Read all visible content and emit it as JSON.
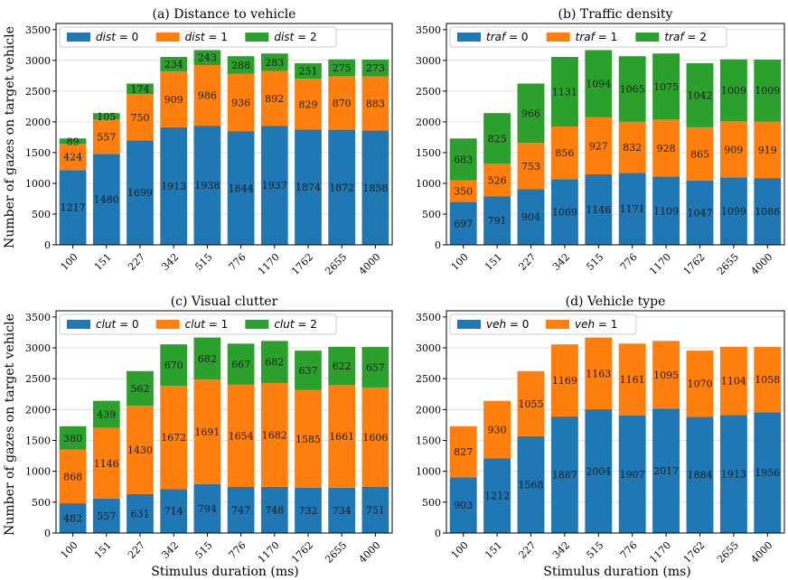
{
  "figure": {
    "ylabel": "Number of gazes on target vehicle",
    "xlabel": "Stimulus duration (ms)"
  },
  "chart_data": [
    {
      "type": "bar",
      "stacked": true,
      "title": "(a) Distance to vehicle",
      "xlabel": "",
      "ylabel": "Number of gazes on target vehicle",
      "categories": [
        "100",
        "151",
        "227",
        "342",
        "515",
        "776",
        "1170",
        "1762",
        "2655",
        "4000"
      ],
      "ylim": [
        0,
        3600
      ],
      "yticks": [
        0,
        500,
        1000,
        1500,
        2000,
        2500,
        3000,
        3500
      ],
      "grid": true,
      "legend": "top",
      "series": [
        {
          "name": "dist = 0",
          "var": "dist",
          "val": "0",
          "color": "#1f77b4",
          "values": [
            1217,
            1480,
            1699,
            1913,
            1938,
            1844,
            1937,
            1874,
            1872,
            1858
          ]
        },
        {
          "name": "dist = 1",
          "var": "dist",
          "val": "1",
          "color": "#ff7f0e",
          "values": [
            424,
            557,
            750,
            909,
            986,
            936,
            892,
            829,
            870,
            883
          ]
        },
        {
          "name": "dist = 2",
          "var": "dist",
          "val": "2",
          "color": "#2ca02c",
          "values": [
            89,
            105,
            174,
            234,
            243,
            288,
            283,
            251,
            275,
            273
          ]
        }
      ]
    },
    {
      "type": "bar",
      "stacked": true,
      "title": "(b) Traffic density",
      "xlabel": "",
      "ylabel": "",
      "categories": [
        "100",
        "151",
        "227",
        "342",
        "515",
        "776",
        "1170",
        "1762",
        "2655",
        "4000"
      ],
      "ylim": [
        0,
        3600
      ],
      "yticks": [
        0,
        500,
        1000,
        1500,
        2000,
        2500,
        3000,
        3500
      ],
      "grid": true,
      "legend": "top",
      "series": [
        {
          "name": "traf = 0",
          "var": "traf",
          "val": "0",
          "color": "#1f77b4",
          "values": [
            697,
            791,
            904,
            1069,
            1146,
            1171,
            1109,
            1047,
            1099,
            1086
          ]
        },
        {
          "name": "traf = 1",
          "var": "traf",
          "val": "1",
          "color": "#ff7f0e",
          "values": [
            350,
            526,
            753,
            856,
            927,
            832,
            928,
            865,
            909,
            919
          ]
        },
        {
          "name": "traf = 2",
          "var": "traf",
          "val": "2",
          "color": "#2ca02c",
          "values": [
            683,
            825,
            966,
            1131,
            1094,
            1065,
            1075,
            1042,
            1009,
            1009
          ]
        }
      ]
    },
    {
      "type": "bar",
      "stacked": true,
      "title": "(c) Visual clutter",
      "xlabel": "Stimulus duration (ms)",
      "ylabel": "Number of gazes on target vehicle",
      "categories": [
        "100",
        "151",
        "227",
        "342",
        "515",
        "776",
        "1170",
        "1762",
        "2655",
        "4000"
      ],
      "ylim": [
        0,
        3600
      ],
      "yticks": [
        0,
        500,
        1000,
        1500,
        2000,
        2500,
        3000,
        3500
      ],
      "grid": true,
      "legend": "top",
      "series": [
        {
          "name": "clut = 0",
          "var": "clut",
          "val": "0",
          "color": "#1f77b4",
          "values": [
            482,
            557,
            631,
            714,
            794,
            747,
            748,
            732,
            734,
            751
          ]
        },
        {
          "name": "clut = 1",
          "var": "clut",
          "val": "1",
          "color": "#ff7f0e",
          "values": [
            868,
            1146,
            1430,
            1672,
            1691,
            1654,
            1682,
            1585,
            1661,
            1606
          ]
        },
        {
          "name": "clut = 2",
          "var": "clut",
          "val": "2",
          "color": "#2ca02c",
          "values": [
            380,
            439,
            562,
            670,
            682,
            667,
            682,
            637,
            622,
            657
          ]
        }
      ]
    },
    {
      "type": "bar",
      "stacked": true,
      "title": "(d) Vehicle type",
      "xlabel": "Stimulus duration (ms)",
      "ylabel": "",
      "categories": [
        "100",
        "151",
        "227",
        "342",
        "515",
        "776",
        "1170",
        "1762",
        "2655",
        "4000"
      ],
      "ylim": [
        0,
        3600
      ],
      "yticks": [
        0,
        500,
        1000,
        1500,
        2000,
        2500,
        3000,
        3500
      ],
      "grid": true,
      "legend": "top",
      "series": [
        {
          "name": "veh = 0",
          "var": "veh",
          "val": "0",
          "color": "#1f77b4",
          "values": [
            903,
            1212,
            1568,
            1887,
            2004,
            1907,
            2017,
            1884,
            1913,
            1956
          ]
        },
        {
          "name": "veh = 1",
          "var": "veh",
          "val": "1",
          "color": "#ff7f0e",
          "values": [
            827,
            930,
            1055,
            1169,
            1163,
            1161,
            1095,
            1070,
            1104,
            1058
          ]
        }
      ]
    }
  ]
}
